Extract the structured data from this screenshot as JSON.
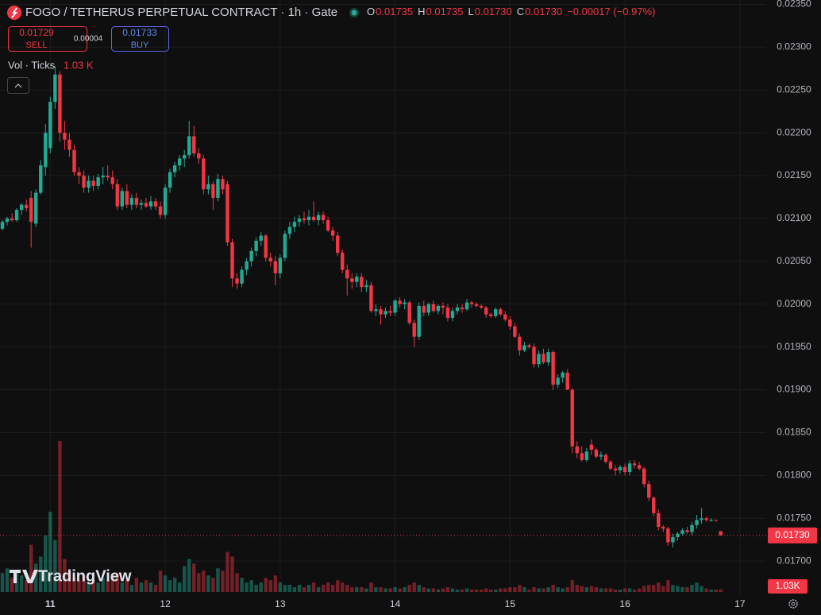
{
  "header": {
    "symbol": "FOGO / TETHERUS PERPETUAL CONTRACT · 1h · Gate",
    "ohlc": [
      {
        "key": "O",
        "value": "0.01735"
      },
      {
        "key": "H",
        "value": "0.01735"
      },
      {
        "key": "L",
        "value": "0.01730"
      },
      {
        "key": "C",
        "value": "0.01730"
      }
    ],
    "change": "−0.00017 (−0.97%)"
  },
  "trade": {
    "sell_price": "0.01729",
    "sell_label": "SELL",
    "spread": "0.00004",
    "buy_price": "0.01733",
    "buy_label": "BUY"
  },
  "volume_legend": {
    "label": "Vol · Ticks",
    "value": "1.03 K"
  },
  "watermark": "TradingView",
  "chart_data": {
    "type": "candlestick",
    "up_color": "#22ab94",
    "down_color": "#f23645",
    "grid": true,
    "ylim": [
      0.01664,
      0.02355
    ],
    "yticks": [
      {
        "value": 0.017,
        "label": "0.01700"
      },
      {
        "value": 0.0175,
        "label": "0.01750"
      },
      {
        "value": 0.018,
        "label": "0.01800"
      },
      {
        "value": 0.0185,
        "label": "0.01850"
      },
      {
        "value": 0.019,
        "label": "0.01900"
      },
      {
        "value": 0.0195,
        "label": "0.01950"
      },
      {
        "value": 0.02,
        "label": "0.02000"
      },
      {
        "value": 0.0205,
        "label": "0.02050"
      },
      {
        "value": 0.021,
        "label": "0.02100"
      },
      {
        "value": 0.0215,
        "label": "0.02150"
      },
      {
        "value": 0.022,
        "label": "0.02200"
      },
      {
        "value": 0.0225,
        "label": "0.02250"
      },
      {
        "value": 0.023,
        "label": "0.02300"
      },
      {
        "value": 0.0235,
        "label": "0.02350"
      }
    ],
    "last_price": {
      "value": 0.0173,
      "label": "0.01730"
    },
    "volume_tag": "1.03K",
    "categories": [
      null,
      null,
      null,
      null,
      null,
      null,
      null,
      null,
      null,
      null,
      "11",
      null,
      null,
      null,
      null,
      null,
      null,
      null,
      null,
      null,
      null,
      null,
      null,
      null,
      null,
      null,
      null,
      null,
      null,
      null,
      null,
      null,
      null,
      null,
      "12",
      null,
      null,
      null,
      null,
      null,
      null,
      null,
      null,
      null,
      null,
      null,
      null,
      null,
      null,
      null,
      null,
      null,
      null,
      null,
      null,
      null,
      null,
      null,
      "13",
      null,
      null,
      null,
      null,
      null,
      null,
      null,
      null,
      null,
      null,
      null,
      null,
      null,
      null,
      null,
      null,
      null,
      null,
      null,
      null,
      null,
      null,
      null,
      "14",
      null,
      null,
      null,
      null,
      null,
      null,
      null,
      null,
      null,
      null,
      null,
      null,
      null,
      null,
      null,
      null,
      null,
      null,
      null,
      null,
      null,
      null,
      null,
      "15",
      null,
      null,
      null,
      null,
      null,
      null,
      null,
      null,
      null,
      null,
      null,
      null,
      null,
      null,
      null,
      null,
      null,
      null,
      null,
      null,
      null,
      null,
      null,
      "16",
      null,
      null,
      null,
      null,
      null,
      null,
      null,
      null,
      null,
      null,
      null,
      null,
      null,
      null,
      null,
      null,
      null,
      null,
      null,
      null,
      null,
      null,
      null,
      "17",
      null,
      null,
      null,
      null,
      null
    ],
    "ohlc": [
      [
        0.02088,
        0.02098,
        0.02086,
        0.02096
      ],
      [
        0.02096,
        0.02102,
        0.02092,
        0.021
      ],
      [
        0.021,
        0.02106,
        0.02096,
        0.02098
      ],
      [
        0.02098,
        0.02112,
        0.02096,
        0.0211
      ],
      [
        0.0211,
        0.02118,
        0.02104,
        0.02116
      ],
      [
        0.02116,
        0.02122,
        0.02108,
        0.02112
      ],
      [
        0.02124,
        0.02132,
        0.02066,
        0.02096
      ],
      [
        0.02094,
        0.02134,
        0.0209,
        0.0213
      ],
      [
        0.0213,
        0.02168,
        0.02128,
        0.02162
      ],
      [
        0.0216,
        0.0221,
        0.0215,
        0.022
      ],
      [
        0.02182,
        0.02242,
        0.02176,
        0.02236
      ],
      [
        0.02236,
        0.02278,
        0.02228,
        0.02268
      ],
      [
        0.02268,
        0.02272,
        0.0219,
        0.022
      ],
      [
        0.022,
        0.02214,
        0.0218,
        0.02192
      ],
      [
        0.02192,
        0.022,
        0.02172,
        0.0218
      ],
      [
        0.0218,
        0.02186,
        0.0215,
        0.02154
      ],
      [
        0.02154,
        0.0216,
        0.0214,
        0.0215
      ],
      [
        0.0215,
        0.02156,
        0.0213,
        0.02136
      ],
      [
        0.02136,
        0.0215,
        0.0213,
        0.02144
      ],
      [
        0.02144,
        0.0215,
        0.02132,
        0.02138
      ],
      [
        0.02138,
        0.02152,
        0.02134,
        0.02148
      ],
      [
        0.02148,
        0.0216,
        0.0214,
        0.0215
      ],
      [
        0.0215,
        0.02162,
        0.02144,
        0.02148
      ],
      [
        0.02148,
        0.02156,
        0.02134,
        0.0214
      ],
      [
        0.0214,
        0.02146,
        0.0211,
        0.02114
      ],
      [
        0.02114,
        0.02136,
        0.0211,
        0.02132
      ],
      [
        0.02132,
        0.0214,
        0.02112,
        0.02116
      ],
      [
        0.02116,
        0.02128,
        0.0211,
        0.02124
      ],
      [
        0.02124,
        0.0213,
        0.02112,
        0.02116
      ],
      [
        0.02116,
        0.02122,
        0.0211,
        0.02118
      ],
      [
        0.02118,
        0.02124,
        0.02112,
        0.02114
      ],
      [
        0.02114,
        0.02126,
        0.0211,
        0.0212
      ],
      [
        0.0212,
        0.02124,
        0.0211,
        0.02114
      ],
      [
        0.02114,
        0.0212,
        0.021,
        0.02104
      ],
      [
        0.02104,
        0.0214,
        0.021,
        0.02136
      ],
      [
        0.02136,
        0.02158,
        0.0213,
        0.02154
      ],
      [
        0.02154,
        0.02166,
        0.02148,
        0.02162
      ],
      [
        0.02162,
        0.02174,
        0.02156,
        0.0217
      ],
      [
        0.0217,
        0.0218,
        0.0216,
        0.02174
      ],
      [
        0.02174,
        0.02214,
        0.0217,
        0.02196
      ],
      [
        0.02196,
        0.02208,
        0.02172,
        0.02176
      ],
      [
        0.02176,
        0.02182,
        0.02164,
        0.0217
      ],
      [
        0.0217,
        0.02174,
        0.02128,
        0.02134
      ],
      [
        0.02134,
        0.0215,
        0.02128,
        0.0214
      ],
      [
        0.0214,
        0.02144,
        0.0211,
        0.02124
      ],
      [
        0.02124,
        0.02152,
        0.0212,
        0.02146
      ],
      [
        0.02146,
        0.0215,
        0.02128,
        0.02134
      ],
      [
        0.0214,
        0.02144,
        0.02068,
        0.02072
      ],
      [
        0.02072,
        0.02076,
        0.0202,
        0.0203
      ],
      [
        0.0203,
        0.02036,
        0.02018,
        0.02024
      ],
      [
        0.02024,
        0.02044,
        0.0202,
        0.0204
      ],
      [
        0.0204,
        0.02054,
        0.02034,
        0.0205
      ],
      [
        0.0205,
        0.02066,
        0.02044,
        0.02062
      ],
      [
        0.02062,
        0.02078,
        0.02056,
        0.02074
      ],
      [
        0.02074,
        0.02084,
        0.02068,
        0.0208
      ],
      [
        0.0208,
        0.02082,
        0.0205,
        0.02054
      ],
      [
        0.02054,
        0.0206,
        0.02044,
        0.0205
      ],
      [
        0.0205,
        0.02056,
        0.02022,
        0.02036
      ],
      [
        0.02036,
        0.02058,
        0.0203,
        0.02054
      ],
      [
        0.02054,
        0.02086,
        0.0205,
        0.02082
      ],
      [
        0.02082,
        0.02096,
        0.02076,
        0.0209
      ],
      [
        0.0209,
        0.02102,
        0.02084,
        0.02096
      ],
      [
        0.02096,
        0.02104,
        0.0209,
        0.021
      ],
      [
        0.021,
        0.02108,
        0.02094,
        0.02098
      ],
      [
        0.02098,
        0.0211,
        0.02092,
        0.02102
      ],
      [
        0.02102,
        0.0212,
        0.02096,
        0.02098
      ],
      [
        0.02098,
        0.02108,
        0.02092,
        0.02104
      ],
      [
        0.02104,
        0.02108,
        0.02094,
        0.02098
      ],
      [
        0.02098,
        0.02102,
        0.02084,
        0.02086
      ],
      [
        0.02086,
        0.0209,
        0.02074,
        0.0208
      ],
      [
        0.0208,
        0.02084,
        0.02056,
        0.0206
      ],
      [
        0.0206,
        0.02064,
        0.02036,
        0.0204
      ],
      [
        0.0204,
        0.02046,
        0.0201,
        0.0203
      ],
      [
        0.0203,
        0.02036,
        0.02018,
        0.02026
      ],
      [
        0.02026,
        0.02036,
        0.0202,
        0.02032
      ],
      [
        0.02032,
        0.02036,
        0.02014,
        0.0202
      ],
      [
        0.0202,
        0.02028,
        0.02014,
        0.02022
      ],
      [
        0.02022,
        0.02026,
        0.0199,
        0.01992
      ],
      [
        0.01992,
        0.02,
        0.01986,
        0.01994
      ],
      [
        0.01994,
        0.01998,
        0.01976,
        0.01988
      ],
      [
        0.01988,
        0.01996,
        0.01984,
        0.01992
      ],
      [
        0.01992,
        0.01998,
        0.01986,
        0.0199
      ],
      [
        0.0199,
        0.02006,
        0.01986,
        0.02004
      ],
      [
        0.02004,
        0.02008,
        0.01996,
        0.02
      ],
      [
        0.02,
        0.02006,
        0.01994,
        0.02002
      ],
      [
        0.02002,
        0.02004,
        0.01976,
        0.01978
      ],
      [
        0.01978,
        0.01982,
        0.0195,
        0.01962
      ],
      [
        0.01962,
        0.02002,
        0.01958,
        0.01998
      ],
      [
        0.01998,
        0.02004,
        0.01986,
        0.0199
      ],
      [
        0.0199,
        0.02002,
        0.01986,
        0.02
      ],
      [
        0.02,
        0.02004,
        0.0199,
        0.01992
      ],
      [
        0.01992,
        0.02,
        0.01988,
        0.01998
      ],
      [
        0.01998,
        0.02002,
        0.01988,
        0.01996
      ],
      [
        0.01996,
        0.02,
        0.0198,
        0.01984
      ],
      [
        0.01984,
        0.01996,
        0.0198,
        0.01992
      ],
      [
        0.01992,
        0.02,
        0.01988,
        0.01996
      ],
      [
        0.01996,
        0.02,
        0.0199,
        0.01994
      ],
      [
        0.01994,
        0.02006,
        0.01992,
        0.02002
      ],
      [
        0.02002,
        0.02004,
        0.01996,
        0.02
      ],
      [
        0.02,
        0.02002,
        0.01996,
        0.01998
      ],
      [
        0.01998,
        0.02,
        0.01994,
        0.01996
      ],
      [
        0.01996,
        0.01998,
        0.01984,
        0.01988
      ],
      [
        0.01988,
        0.0199,
        0.01984,
        0.01986
      ],
      [
        0.01986,
        0.01996,
        0.01984,
        0.01994
      ],
      [
        0.01994,
        0.01996,
        0.01986,
        0.01988
      ],
      [
        0.01988,
        0.01992,
        0.0198,
        0.01982
      ],
      [
        0.01982,
        0.01986,
        0.0197,
        0.01974
      ],
      [
        0.01974,
        0.01978,
        0.0196,
        0.01962
      ],
      [
        0.01962,
        0.01966,
        0.0194,
        0.01946
      ],
      [
        0.01946,
        0.01956,
        0.01944,
        0.01952
      ],
      [
        0.01952,
        0.01954,
        0.01948,
        0.0195
      ],
      [
        0.0195,
        0.01954,
        0.01926,
        0.0193
      ],
      [
        0.0193,
        0.01946,
        0.01926,
        0.01942
      ],
      [
        0.01942,
        0.01948,
        0.0193,
        0.01932
      ],
      [
        0.01932,
        0.01948,
        0.01928,
        0.01944
      ],
      [
        0.01944,
        0.01946,
        0.019,
        0.01906
      ],
      [
        0.01906,
        0.01918,
        0.01902,
        0.01914
      ],
      [
        0.01914,
        0.01922,
        0.01908,
        0.0192
      ],
      [
        0.0192,
        0.01924,
        0.019,
        0.019
      ],
      [
        0.019,
        0.01902,
        0.01826,
        0.01834
      ],
      [
        0.01834,
        0.0184,
        0.0182,
        0.01826
      ],
      [
        0.01826,
        0.01834,
        0.01816,
        0.01818
      ],
      [
        0.01818,
        0.01832,
        0.01816,
        0.01828
      ],
      [
        0.01836,
        0.01842,
        0.01824,
        0.0183
      ],
      [
        0.0183,
        0.01832,
        0.0182,
        0.01822
      ],
      [
        0.01822,
        0.01828,
        0.01818,
        0.01824
      ],
      [
        0.01824,
        0.01826,
        0.01814,
        0.01816
      ],
      [
        0.01816,
        0.01818,
        0.01806,
        0.01808
      ],
      [
        0.01808,
        0.01812,
        0.018,
        0.01806
      ],
      [
        0.01806,
        0.01812,
        0.01802,
        0.0181
      ],
      [
        0.0181,
        0.01814,
        0.018,
        0.01804
      ],
      [
        0.01804,
        0.01818,
        0.018,
        0.01814
      ],
      [
        0.01814,
        0.01818,
        0.01808,
        0.01812
      ],
      [
        0.01812,
        0.01816,
        0.01806,
        0.01808
      ],
      [
        0.01808,
        0.0181,
        0.01786,
        0.0179
      ],
      [
        0.0179,
        0.01794,
        0.0177,
        0.01774
      ],
      [
        0.01774,
        0.01776,
        0.01752,
        0.01756
      ],
      [
        0.01756,
        0.0176,
        0.01736,
        0.0174
      ],
      [
        0.0174,
        0.01742,
        0.01734,
        0.01738
      ],
      [
        0.01738,
        0.0174,
        0.01718,
        0.01722
      ],
      [
        0.01722,
        0.01732,
        0.01716,
        0.01728
      ],
      [
        0.01728,
        0.01734,
        0.01724,
        0.01732
      ],
      [
        0.01732,
        0.01738,
        0.0173,
        0.01736
      ],
      [
        0.01736,
        0.0174,
        0.01732,
        0.01734
      ],
      [
        0.01734,
        0.01746,
        0.0173,
        0.01742
      ],
      [
        0.01742,
        0.01754,
        0.01738,
        0.01748
      ],
      [
        0.01748,
        0.01762,
        0.01744,
        0.0175
      ],
      [
        0.0175,
        0.01752,
        0.01746,
        0.01748
      ],
      [
        0.01747,
        0.0175,
        0.01746,
        0.01748
      ],
      [
        0.01748,
        0.01748,
        0.01746,
        0.01747
      ],
      [
        0.01735,
        0.01735,
        0.0173,
        0.0173
      ],
      null,
      null,
      null,
      null,
      null,
      null,
      null,
      null,
      null
    ],
    "volume": [
      8000,
      10000,
      6000,
      9000,
      7000,
      5000,
      20000,
      12000,
      15000,
      24000,
      34000,
      22000,
      64000,
      14000,
      9000,
      6000,
      5000,
      7000,
      4000,
      5000,
      4000,
      6000,
      5000,
      7000,
      8000,
      4000,
      5000,
      3000,
      6000,
      4000,
      5000,
      4000,
      3000,
      9000,
      7000,
      5000,
      6000,
      4000,
      11000,
      14000,
      12000,
      8000,
      9000,
      7000,
      6000,
      10000,
      9000,
      17000,
      15000,
      8000,
      6000,
      4000,
      5000,
      3000,
      4000,
      6000,
      5000,
      7000,
      4000,
      3000,
      3000,
      2000,
      3000,
      2000,
      3000,
      4000,
      2000,
      3000,
      4000,
      3000,
      5000,
      4000,
      3000,
      2000,
      2000,
      2000,
      1500,
      4000,
      2000,
      2000,
      1500,
      1500,
      2000,
      1500,
      2000,
      3000,
      4000,
      3000,
      2000,
      1500,
      1500,
      1000,
      1500,
      2000,
      1500,
      1000,
      1000,
      1500,
      1000,
      1000,
      1000,
      1500,
      1000,
      1000,
      1500,
      1500,
      2000,
      2000,
      3000,
      2000,
      1000,
      2000,
      1500,
      1500,
      2000,
      3000,
      2000,
      1500,
      2000,
      5000,
      3000,
      2500,
      2000,
      2500,
      2000,
      1500,
      1500,
      1500,
      1000,
      1000,
      1500,
      1500,
      1000,
      1500,
      2500,
      3000,
      3000,
      4000,
      2500,
      5000,
      3000,
      2500,
      2000,
      2000,
      3000,
      4000,
      2500,
      1500,
      1000,
      1000,
      1030,
      null,
      null,
      null,
      null,
      null,
      null,
      null,
      null,
      null
    ]
  }
}
